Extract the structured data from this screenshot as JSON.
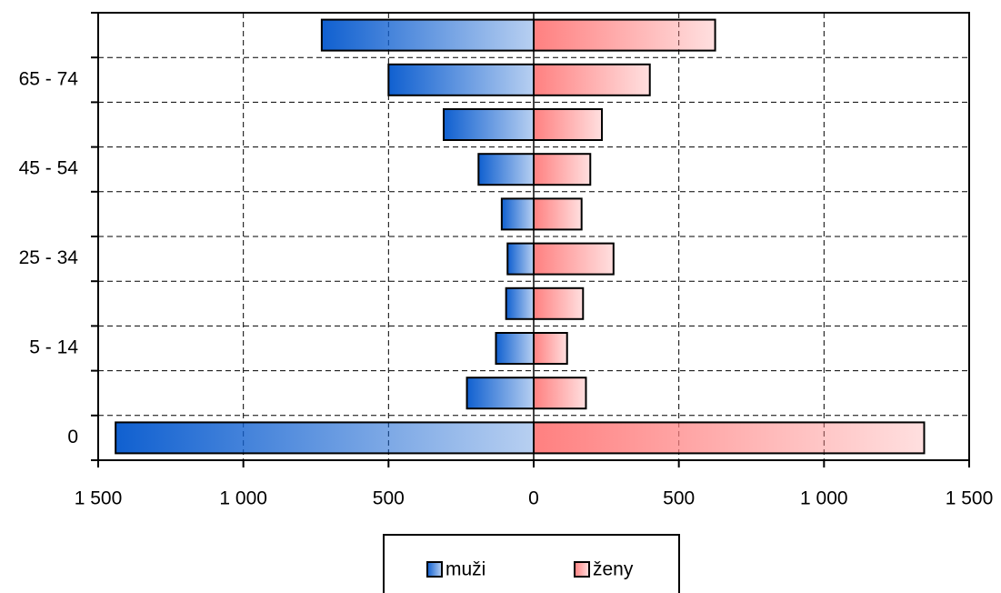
{
  "chart_data": {
    "type": "bar",
    "orientation": "horizontal",
    "categories": [
      "0",
      null,
      "5 - 14",
      null,
      "25 - 34",
      null,
      "45 - 54",
      null,
      "65 - 74",
      null
    ],
    "series": [
      {
        "name": "muži",
        "color": "#1060d0",
        "values": [
          -1440,
          -230,
          -130,
          -95,
          -90,
          -110,
          -190,
          -310,
          -500,
          -730
        ]
      },
      {
        "name": "ženy",
        "color": "#ff8080",
        "values": [
          1345,
          180,
          115,
          170,
          275,
          165,
          195,
          235,
          400,
          625
        ]
      }
    ],
    "xlim": [
      -1500,
      1500
    ],
    "xticks": [
      {
        "value": -1500,
        "label": "1 500"
      },
      {
        "value": -1000,
        "label": "1 000"
      },
      {
        "value": -500,
        "label": "500"
      },
      0,
      500,
      {
        "value": 1000,
        "label": "1 000"
      },
      {
        "value": 1500,
        "label": "1 500"
      }
    ],
    "grid": true,
    "legend": "bottom"
  }
}
